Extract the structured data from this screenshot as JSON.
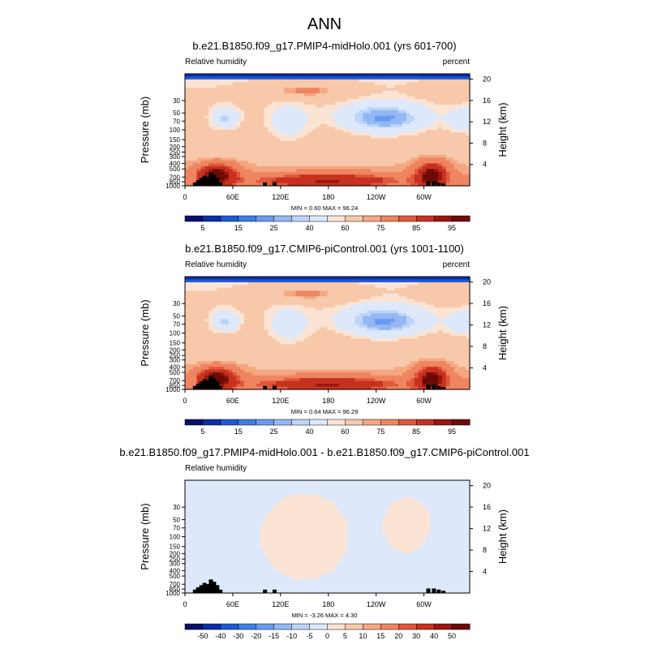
{
  "figure": {
    "title": "ANN"
  },
  "palettes": {
    "rh": [
      "#08106b",
      "#0b2fa8",
      "#1e59d6",
      "#3f7fe6",
      "#6a9bef",
      "#94b8f3",
      "#bcd4f8",
      "#dde9fb",
      "#fbe4d4",
      "#f8c8ab",
      "#f4a882",
      "#ef8560",
      "#e1583c",
      "#c6321f",
      "#9b1510",
      "#6e0a06"
    ],
    "diff": [
      "#08106b",
      "#0b2fa8",
      "#1e59d6",
      "#3f7fe6",
      "#6a9bef",
      "#94b8f3",
      "#bcd4f8",
      "#dde9fb",
      "#fbe4d4",
      "#f8c8ab",
      "#f4a882",
      "#ef8560",
      "#e1583c",
      "#c6321f",
      "#9b1510",
      "#6e0a06"
    ]
  },
  "chart_data": [
    {
      "type": "heatmap",
      "id": "p1",
      "title": "b.e21.B1850.f09_g17.PMIP4-midHolo.001 (yrs 601-700)",
      "left_label": "Relative humidity",
      "right_label": "percent",
      "ylabel": "Pressure (mb)",
      "y2label": "Height (km)",
      "x_ticks": [
        "0",
        "60E",
        "120E",
        "180",
        "120W",
        "60W"
      ],
      "x_tick_lon": [
        0,
        60,
        120,
        180,
        240,
        300
      ],
      "xlim": [
        0,
        357.5
      ],
      "y_ticks": [
        "1000",
        "850",
        "700",
        "500",
        "400",
        "300",
        "250",
        "200",
        "150",
        "100",
        "70",
        "50",
        "30"
      ],
      "y_tick_p": [
        1000,
        850,
        700,
        500,
        400,
        300,
        250,
        200,
        150,
        100,
        70,
        50,
        30
      ],
      "ylim": [
        1000,
        10
      ],
      "y2_ticks": [
        "4",
        "8",
        "12",
        "16",
        "20"
      ],
      "y2_tick_km": [
        4,
        8,
        12,
        16,
        20
      ],
      "minmax": "MIN =   0.60  MAX =  96.24",
      "palette": "rh",
      "colorbar_ticks": [
        "5",
        "15",
        "25",
        "40",
        "60",
        "75",
        "85",
        "95"
      ],
      "colorbar_tick_pos": [
        1,
        3,
        5,
        7,
        9,
        11,
        13,
        15
      ],
      "field": "rh"
    },
    {
      "type": "heatmap",
      "id": "p2",
      "title": "b.e21.B1850.f09_g17.CMIP6-piControl.001 (yrs 1001-1100)",
      "left_label": "Relative humidity",
      "right_label": "percent",
      "ylabel": "Pressure (mb)",
      "y2label": "Height (km)",
      "x_ticks": [
        "0",
        "60E",
        "120E",
        "180",
        "120W",
        "60W"
      ],
      "x_tick_lon": [
        0,
        60,
        120,
        180,
        240,
        300
      ],
      "xlim": [
        0,
        357.5
      ],
      "y_ticks": [
        "1000",
        "850",
        "700",
        "500",
        "400",
        "300",
        "250",
        "200",
        "150",
        "100",
        "70",
        "50",
        "30"
      ],
      "y_tick_p": [
        1000,
        850,
        700,
        500,
        400,
        300,
        250,
        200,
        150,
        100,
        70,
        50,
        30
      ],
      "ylim": [
        1000,
        10
      ],
      "y2_ticks": [
        "4",
        "8",
        "12",
        "16",
        "20"
      ],
      "y2_tick_km": [
        4,
        8,
        12,
        16,
        20
      ],
      "minmax": "MIN =   0.64  MAX =  96.29",
      "palette": "rh",
      "colorbar_ticks": [
        "5",
        "15",
        "25",
        "40",
        "60",
        "75",
        "85",
        "95"
      ],
      "colorbar_tick_pos": [
        1,
        3,
        5,
        7,
        9,
        11,
        13,
        15
      ],
      "field": "rh"
    },
    {
      "type": "heatmap",
      "id": "p3",
      "title": "b.e21.B1850.f09_g17.PMIP4-midHolo.001 - b.e21.B1850.f09_g17.CMIP6-piControl.001",
      "left_label": "Relative humidity",
      "right_label": "",
      "ylabel": "Pressure (mb)",
      "y2label": "Height (km)",
      "x_ticks": [
        "0",
        "60E",
        "120E",
        "180",
        "120W",
        "60W"
      ],
      "x_tick_lon": [
        0,
        60,
        120,
        180,
        240,
        300
      ],
      "xlim": [
        0,
        357.5
      ],
      "y_ticks": [
        "1000",
        "850",
        "700",
        "500",
        "400",
        "300",
        "250",
        "200",
        "150",
        "100",
        "70",
        "50",
        "30"
      ],
      "y_tick_p": [
        1000,
        850,
        700,
        500,
        400,
        300,
        250,
        200,
        150,
        100,
        70,
        50,
        30
      ],
      "ylim": [
        1000,
        10
      ],
      "y2_ticks": [
        "4",
        "8",
        "12",
        "16",
        "20"
      ],
      "y2_tick_km": [
        4,
        8,
        12,
        16,
        20
      ],
      "minmax": "MIN =  -3.26  MAX =   4.30",
      "palette": "diff",
      "colorbar_ticks": [
        "-50",
        "-40",
        "-30",
        "-20",
        "-15",
        "-10",
        "-5",
        "0",
        "5",
        "10",
        "15",
        "20",
        "30",
        "40",
        "50"
      ],
      "colorbar_tick_pos": [
        1,
        2,
        3,
        4,
        5,
        6,
        7,
        8,
        9,
        10,
        11,
        12,
        13,
        14,
        15
      ],
      "field": "diff"
    }
  ]
}
